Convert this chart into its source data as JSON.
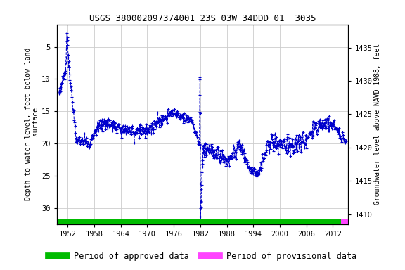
{
  "title": "USGS 380002097374001 23S 03W 34DDD 01  3035",
  "title_fontsize": 9,
  "ylabel_left": "Depth to water level, feet below land\n surface",
  "ylabel_right": "Groundwater level above NAVD 1988, feet",
  "ylim_left": [
    32.5,
    1.5
  ],
  "ylim_right": [
    1408.5,
    1438.5
  ],
  "xlim": [
    1949.5,
    2015.5
  ],
  "xticks": [
    1952,
    1958,
    1964,
    1970,
    1976,
    1982,
    1988,
    1994,
    2000,
    2006,
    2012
  ],
  "yticks_left": [
    5,
    10,
    15,
    20,
    25,
    30
  ],
  "yticks_right": [
    1410,
    1415,
    1420,
    1425,
    1430,
    1435
  ],
  "line_color": "#0000CC",
  "line_style": "--",
  "marker": "+",
  "marker_size": 3,
  "line_width": 0.7,
  "grid_color": "#cccccc",
  "bg_color": "#ffffff",
  "approved_color": "#00bb00",
  "provisional_color": "#ff44ff",
  "legend_fontsize": 8.5,
  "font_family": "monospace",
  "bar_approved_end": 2013.8,
  "bar_provisional_end": 2015.5,
  "bar_start": 1949.5
}
